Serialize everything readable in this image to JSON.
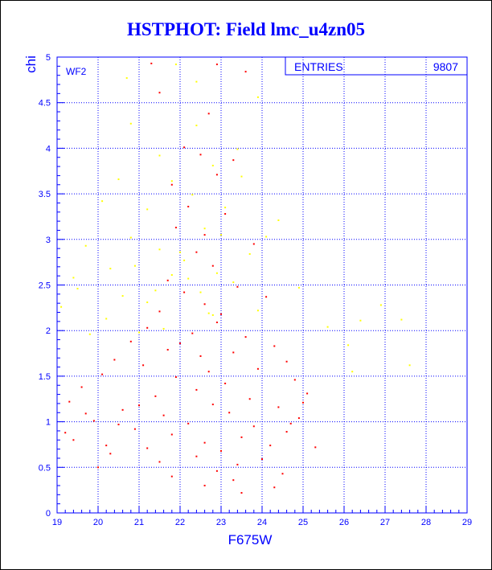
{
  "chart_data": {
    "type": "scatter",
    "title": "HSTPHOT: Field lmc_u4zn05",
    "xlabel": "F675W",
    "ylabel": "chi",
    "xlim": [
      19,
      29
    ],
    "ylim": [
      0,
      5
    ],
    "x_ticks": [
      "19",
      "20",
      "21",
      "22",
      "23",
      "24",
      "25",
      "26",
      "27",
      "28",
      "29"
    ],
    "y_ticks": [
      "0",
      "0.5",
      "1",
      "1.5",
      "2",
      "2.5",
      "3",
      "3.5",
      "4",
      "4.5",
      "5"
    ],
    "grid": true,
    "stats_box": {
      "label": "ENTRIES",
      "value": "9807",
      "position": "top-right"
    },
    "pad_label": "WF2",
    "series": [
      {
        "color": "#ff0000",
        "points": [
          [
            21.3,
            4.93
          ],
          [
            22.9,
            4.92
          ],
          [
            21.5,
            4.61
          ],
          [
            23.6,
            4.84
          ],
          [
            22.7,
            4.38
          ],
          [
            22.1,
            4.01
          ],
          [
            22.5,
            3.93
          ],
          [
            21.8,
            3.6
          ],
          [
            23.3,
            3.87
          ],
          [
            22.9,
            3.71
          ],
          [
            22.2,
            3.36
          ],
          [
            23.1,
            3.28
          ],
          [
            22.6,
            3.05
          ],
          [
            21.9,
            3.13
          ],
          [
            23.8,
            2.95
          ],
          [
            22.4,
            2.86
          ],
          [
            22.8,
            2.71
          ],
          [
            21.7,
            2.55
          ],
          [
            23.4,
            2.48
          ],
          [
            22.1,
            2.42
          ],
          [
            24.1,
            2.37
          ],
          [
            22.6,
            2.29
          ],
          [
            21.5,
            2.21
          ],
          [
            23.0,
            2.18
          ],
          [
            22.9,
            2.09
          ],
          [
            21.2,
            2.03
          ],
          [
            22.3,
            1.97
          ],
          [
            23.6,
            1.93
          ],
          [
            20.8,
            1.88
          ],
          [
            22.0,
            1.86
          ],
          [
            24.3,
            1.83
          ],
          [
            21.7,
            1.79
          ],
          [
            23.3,
            1.76
          ],
          [
            22.5,
            1.72
          ],
          [
            20.4,
            1.68
          ],
          [
            24.6,
            1.66
          ],
          [
            21.1,
            1.62
          ],
          [
            23.9,
            1.58
          ],
          [
            22.7,
            1.55
          ],
          [
            20.1,
            1.52
          ],
          [
            21.9,
            1.49
          ],
          [
            24.8,
            1.46
          ],
          [
            23.1,
            1.42
          ],
          [
            19.6,
            1.38
          ],
          [
            22.4,
            1.35
          ],
          [
            25.1,
            1.31
          ],
          [
            21.4,
            1.28
          ],
          [
            23.7,
            1.25
          ],
          [
            19.3,
            1.22
          ],
          [
            22.8,
            1.19
          ],
          [
            24.4,
            1.16
          ],
          [
            20.6,
            1.13
          ],
          [
            23.2,
            1.1
          ],
          [
            21.6,
            1.07
          ],
          [
            24.9,
            1.04
          ],
          [
            19.9,
            1.01
          ],
          [
            22.2,
            0.98
          ],
          [
            23.8,
            0.95
          ],
          [
            20.9,
            0.92
          ],
          [
            24.6,
            0.89
          ],
          [
            21.8,
            0.86
          ],
          [
            23.5,
            0.83
          ],
          [
            19.4,
            0.8
          ],
          [
            22.6,
            0.77
          ],
          [
            24.2,
            0.74
          ],
          [
            21.2,
            0.71
          ],
          [
            23.0,
            0.68
          ],
          [
            20.3,
            0.65
          ],
          [
            22.4,
            0.62
          ],
          [
            24.0,
            0.59
          ],
          [
            21.5,
            0.56
          ],
          [
            23.4,
            0.53
          ],
          [
            20.0,
            0.5
          ],
          [
            22.9,
            0.46
          ],
          [
            24.5,
            0.43
          ],
          [
            21.8,
            0.4
          ],
          [
            23.3,
            0.36
          ],
          [
            22.6,
            0.3
          ],
          [
            23.5,
            0.22
          ],
          [
            24.3,
            0.28
          ],
          [
            25.3,
            0.72
          ],
          [
            25.0,
            1.21
          ],
          [
            24.7,
            0.98
          ],
          [
            20.5,
            0.97
          ],
          [
            21.0,
            1.18
          ],
          [
            19.2,
            0.88
          ],
          [
            19.7,
            1.09
          ],
          [
            20.2,
            0.74
          ]
        ]
      },
      {
        "color": "#ffff00",
        "points": [
          [
            20.7,
            4.77
          ],
          [
            21.9,
            4.92
          ],
          [
            22.4,
            4.73
          ],
          [
            23.9,
            4.56
          ],
          [
            20.8,
            4.27
          ],
          [
            22.4,
            4.25
          ],
          [
            23.4,
            3.99
          ],
          [
            21.5,
            3.92
          ],
          [
            22.8,
            3.81
          ],
          [
            20.5,
            3.66
          ],
          [
            21.8,
            3.64
          ],
          [
            23.5,
            3.69
          ],
          [
            22.3,
            3.49
          ],
          [
            20.1,
            3.42
          ],
          [
            21.2,
            3.33
          ],
          [
            23.1,
            3.35
          ],
          [
            24.4,
            3.21
          ],
          [
            22.6,
            3.12
          ],
          [
            20.8,
            3.02
          ],
          [
            19.7,
            2.93
          ],
          [
            21.5,
            2.89
          ],
          [
            23.7,
            2.84
          ],
          [
            22.1,
            2.77
          ],
          [
            20.3,
            2.68
          ],
          [
            21.8,
            2.61
          ],
          [
            19.4,
            2.58
          ],
          [
            23.3,
            2.53
          ],
          [
            24.9,
            2.47
          ],
          [
            22.5,
            2.42
          ],
          [
            20.6,
            2.38
          ],
          [
            21.2,
            2.31
          ],
          [
            19.1,
            2.26
          ],
          [
            23.9,
            2.22
          ],
          [
            22.8,
            2.17
          ],
          [
            20.2,
            2.13
          ],
          [
            25.6,
            2.04
          ],
          [
            21.6,
            2.02
          ],
          [
            19.8,
            1.96
          ],
          [
            26.4,
            2.11
          ],
          [
            27.6,
            1.62
          ],
          [
            26.2,
            1.55
          ],
          [
            19.5,
            2.46
          ],
          [
            20.9,
            2.71
          ],
          [
            22.0,
            2.86
          ],
          [
            22.2,
            2.57
          ],
          [
            21.4,
            2.44
          ],
          [
            22.7,
            2.19
          ],
          [
            21.0,
            1.98
          ],
          [
            23.0,
            3.05
          ],
          [
            22.9,
            2.63
          ],
          [
            24.1,
            3.03
          ],
          [
            26.9,
            2.28
          ],
          [
            27.4,
            2.12
          ],
          [
            26.1,
            1.84
          ]
        ]
      }
    ]
  }
}
